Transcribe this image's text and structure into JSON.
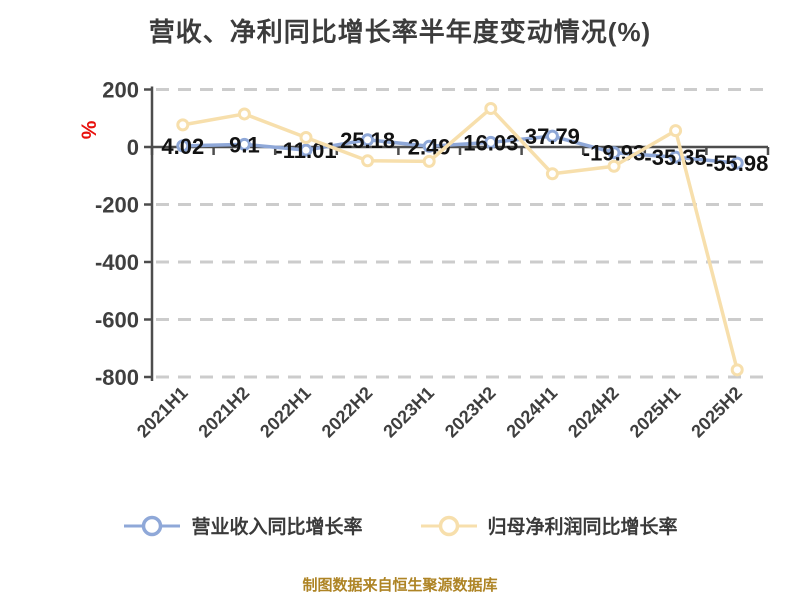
{
  "chart_data": {
    "type": "line",
    "title": "营收、净利同比增长率半年度变动情况(%)",
    "y_unit": "%",
    "categories": [
      "2021H1",
      "2021H2",
      "2022H1",
      "2022H2",
      "2023H1",
      "2023H2",
      "2024H1",
      "2024H2",
      "2025H1",
      "2025H2"
    ],
    "series": [
      {
        "name": "营业收入同比增长率",
        "color": "#8FA8D8",
        "show_labels": true,
        "values": [
          4.02,
          9.1,
          -11.01,
          25.18,
          2.49,
          16.03,
          37.79,
          -19.93,
          -35.35,
          -55.98
        ]
      },
      {
        "name": "归母净利润同比增长率",
        "color": "#F7DFAC",
        "show_labels": false,
        "values_estimated": true,
        "values": [
          77,
          115,
          33,
          -48,
          -50,
          134,
          -93,
          -67,
          57,
          -775
        ]
      }
    ],
    "y_ticks": [
      200,
      0,
      -200,
      -400,
      -600,
      -800
    ],
    "ylim": [
      -800,
      200
    ],
    "grid": "horizontal-dashed",
    "legend_position": "bottom",
    "marker": "circle-white-fill"
  },
  "footer": {
    "note": "制图数据来自恒生聚源数据库"
  },
  "colors": {
    "revenue_line": "#8FA8D8",
    "profit_line": "#F7DFAC",
    "grid": "#CCCCCC",
    "axis": "#4D4D4D",
    "data_label": "#121212",
    "unit_label": "#E8100C",
    "footer": "#AE8425",
    "title": "#3C3C3C"
  }
}
